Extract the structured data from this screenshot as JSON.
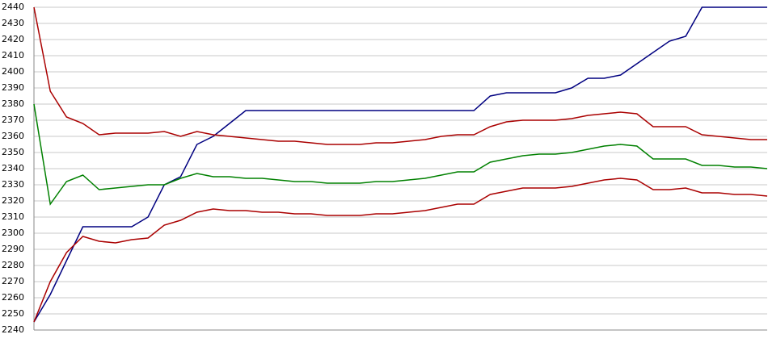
{
  "chart_data": {
    "type": "line",
    "categories": [
      null,
      null,
      null,
      null,
      null,
      null,
      null,
      null,
      null,
      null,
      null,
      null,
      null,
      null,
      null,
      null,
      null,
      null,
      null,
      null,
      null,
      null,
      null,
      null,
      null,
      null,
      null,
      null,
      null,
      null,
      null,
      null,
      null,
      null,
      null,
      null,
      null,
      null,
      null,
      null,
      null,
      null,
      null,
      null,
      null,
      null
    ],
    "series": [
      {
        "color": "#000080",
        "values": [
          2245,
          2262,
          2283,
          2304,
          2304,
          2304,
          2304,
          2310,
          2330,
          2335,
          2355,
          2360,
          2368,
          2376,
          2376,
          2376,
          2376,
          2376,
          2376,
          2376,
          2376,
          2376,
          2376,
          2376,
          2376,
          2376,
          2376,
          2376,
          2385,
          2387,
          2387,
          2387,
          2387,
          2390,
          2396,
          2396,
          2398,
          2405,
          2412,
          2419,
          2422,
          2440,
          2440,
          2440,
          2440,
          2440
        ]
      },
      {
        "color": "#aa0000",
        "values": [
          2440,
          2388,
          2372,
          2368,
          2361,
          2362,
          2362,
          2362,
          2363,
          2360,
          2363,
          2361,
          2360,
          2359,
          2358,
          2357,
          2357,
          2356,
          2355,
          2355,
          2355,
          2356,
          2356,
          2357,
          2358,
          2360,
          2361,
          2361,
          2366,
          2369,
          2370,
          2370,
          2370,
          2371,
          2373,
          2374,
          2375,
          2374,
          2366,
          2366,
          2366,
          2361,
          2360,
          2359,
          2358,
          2358
        ]
      },
      {
        "color": "#008000",
        "values": [
          2380,
          2318,
          2332,
          2336,
          2327,
          2328,
          2329,
          2330,
          2330,
          2334,
          2337,
          2335,
          2335,
          2334,
          2334,
          2333,
          2332,
          2332,
          2331,
          2331,
          2331,
          2332,
          2332,
          2333,
          2334,
          2336,
          2338,
          2338,
          2344,
          2346,
          2348,
          2349,
          2349,
          2350,
          2352,
          2354,
          2355,
          2354,
          2346,
          2346,
          2346,
          2342,
          2342,
          2341,
          2341,
          2340
        ]
      },
      {
        "color": "#aa0000",
        "values": [
          2245,
          2270,
          2288,
          2298,
          2295,
          2294,
          2296,
          2297,
          2305,
          2308,
          2313,
          2315,
          2314,
          2314,
          2313,
          2313,
          2312,
          2312,
          2311,
          2311,
          2311,
          2312,
          2312,
          2313,
          2314,
          2316,
          2318,
          2318,
          2324,
          2326,
          2328,
          2328,
          2328,
          2329,
          2331,
          2333,
          2334,
          2333,
          2327,
          2327,
          2328,
          2325,
          2325,
          2324,
          2324,
          2323
        ]
      }
    ],
    "ylim": [
      2240,
      2440
    ],
    "yticks": [
      2240,
      2250,
      2260,
      2270,
      2280,
      2290,
      2300,
      2310,
      2320,
      2330,
      2340,
      2350,
      2360,
      2370,
      2380,
      2390,
      2400,
      2410,
      2420,
      2430,
      2440
    ],
    "grid": true
  }
}
